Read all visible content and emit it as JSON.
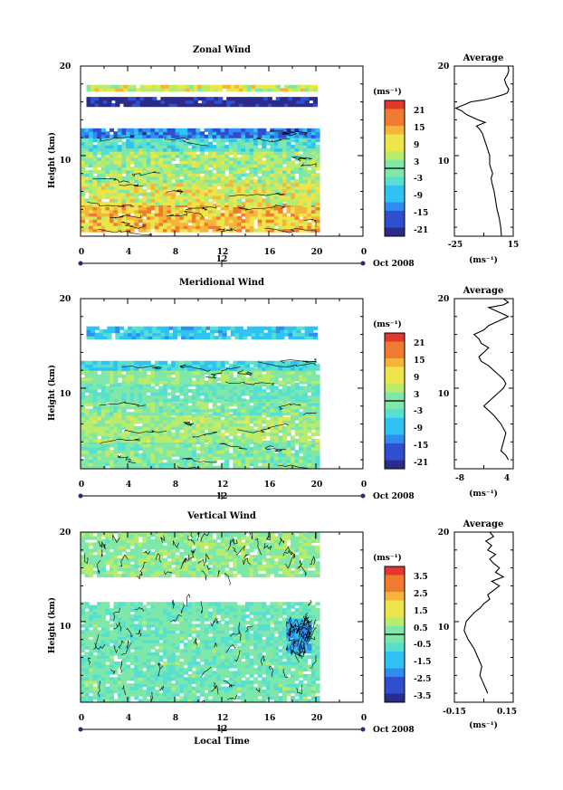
{
  "panels": [
    {
      "title": "Zonal Wind",
      "ylabel": "Height (km)",
      "y_ticks": [
        "20",
        "10"
      ],
      "x_ticks": [
        "0",
        "4",
        "8",
        "12",
        "16",
        "20",
        "0"
      ],
      "date_label": "12",
      "month_label": "Oct 2008",
      "colorbar": {
        "unit": "(ms⁻¹)",
        "ticks": [
          "21",
          "15",
          "9",
          "3",
          "-3",
          "-9",
          "-15",
          "-21"
        ]
      },
      "avg": {
        "title": "Average",
        "y_ticks": [
          "20",
          "10"
        ],
        "x_ticks": [
          "-25",
          "15"
        ],
        "unit": "(ms⁻¹)"
      }
    },
    {
      "title": "Meridional Wind",
      "ylabel": "Height (km)",
      "y_ticks": [
        "20",
        "10"
      ],
      "x_ticks": [
        "0",
        "4",
        "8",
        "12",
        "16",
        "20",
        "0"
      ],
      "date_label": "12",
      "month_label": "Oct 2008",
      "colorbar": {
        "unit": "(ms⁻¹)",
        "ticks": [
          "21",
          "15",
          "9",
          "3",
          "-3",
          "-9",
          "-15",
          "-21"
        ]
      },
      "avg": {
        "title": "Average",
        "y_ticks": [
          "20",
          "10"
        ],
        "x_ticks": [
          "-8",
          "4"
        ],
        "unit": "(ms⁻¹)"
      }
    },
    {
      "title": "Vertical Wind",
      "ylabel": "Height (km)",
      "y_ticks": [
        "20",
        "10"
      ],
      "x_ticks": [
        "0",
        "4",
        "8",
        "12",
        "16",
        "20",
        "0"
      ],
      "date_label": "12",
      "month_label": "Oct 2008",
      "xlabel": "Local Time",
      "colorbar": {
        "unit": "(ms⁻¹)",
        "ticks": [
          "3.5",
          "2.5",
          "1.5",
          "0.5",
          "-0.5",
          "-1.5",
          "-2.5",
          "-3.5"
        ]
      },
      "avg": {
        "title": "Average",
        "y_ticks": [
          "20",
          "10"
        ],
        "x_ticks": [
          "-0.15",
          "0.15"
        ],
        "unit": "(ms⁻¹)"
      }
    }
  ],
  "chart_data": [
    {
      "type": "heatmap",
      "title": "Zonal Wind",
      "xlabel": "",
      "ylabel": "Height (km)",
      "xlim": [
        0,
        24
      ],
      "ylim": [
        1,
        20
      ],
      "colorbar_range": [
        -24,
        24
      ],
      "bands": [
        {
          "y0": 1.5,
          "y1": 4.5,
          "x0": 0,
          "x1": 20,
          "value": 12
        },
        {
          "y0": 4.5,
          "y1": 7,
          "x0": 0,
          "x1": 20,
          "value": 7
        },
        {
          "y0": 7,
          "y1": 10.5,
          "x0": 0,
          "x1": 20,
          "value": 3
        },
        {
          "y0": 10.5,
          "y1": 12,
          "x0": 0,
          "x1": 20,
          "value": -4
        },
        {
          "y0": 12,
          "y1": 13,
          "x0": 0,
          "x1": 20,
          "value": -14
        },
        {
          "y0": 15.5,
          "y1": 16.5,
          "x0": 0.5,
          "x1": 20,
          "value": -22
        },
        {
          "y0": 17.2,
          "y1": 17.6,
          "x0": 0.5,
          "x1": 20,
          "value": 6
        }
      ]
    },
    {
      "type": "line",
      "title": "Average",
      "series_of": "Zonal Wind",
      "xlabel": "(ms⁻¹)",
      "ylabel": "",
      "xlim": [
        -25,
        15
      ],
      "ylim": [
        1,
        20
      ],
      "x": [
        7,
        6.5,
        5.5,
        4,
        3,
        2,
        0.5,
        0,
        1,
        0,
        -1,
        -1,
        -2,
        -3,
        -4,
        -5,
        -6,
        -8,
        -10,
        -4,
        -9,
        -13,
        -17,
        -20,
        -24,
        -18,
        -14,
        -6,
        2,
        8,
        11,
        12,
        11,
        10,
        9,
        11,
        12,
        11.5
      ],
      "y": [
        1,
        2,
        3,
        4,
        5,
        6,
        7,
        7.5,
        8,
        8.5,
        9,
        10,
        10.5,
        11,
        11.5,
        12,
        12.5,
        13,
        13.3,
        13.7,
        14,
        14.3,
        14.6,
        15,
        15.3,
        15.7,
        16,
        16.2,
        16.5,
        16.8,
        17,
        17.4,
        17.7,
        18,
        18.5,
        19,
        19.5,
        20
      ]
    },
    {
      "type": "heatmap",
      "title": "Meridional Wind",
      "xlabel": "",
      "ylabel": "Height (km)",
      "xlim": [
        0,
        24
      ],
      "ylim": [
        1,
        20
      ],
      "colorbar_range": [
        -24,
        24
      ],
      "bands": [
        {
          "y0": 1,
          "y1": 4,
          "x0": 0,
          "x1": 20,
          "value": 0
        },
        {
          "y0": 4,
          "y1": 7,
          "x0": 0,
          "x1": 20,
          "value": 3
        },
        {
          "y0": 7,
          "y1": 8.5,
          "x0": 0,
          "x1": 20,
          "value": 0
        },
        {
          "y0": 8.5,
          "y1": 10.5,
          "x0": 0,
          "x1": 20,
          "value": -2
        },
        {
          "y0": 10.5,
          "y1": 12,
          "x0": 0,
          "x1": 20,
          "value": 2
        },
        {
          "y0": 12,
          "y1": 13,
          "x0": 0,
          "x1": 20,
          "value": -6
        },
        {
          "y0": 15.5,
          "y1": 16.8,
          "x0": 0.5,
          "x1": 20,
          "value": -8
        }
      ]
    },
    {
      "type": "line",
      "title": "Average",
      "series_of": "Meridional Wind",
      "xlabel": "(ms⁻¹)",
      "ylabel": "",
      "xlim": [
        -8,
        4
      ],
      "ylim": [
        1,
        20
      ],
      "x": [
        3,
        2.5,
        1.5,
        2,
        2.5,
        1.5,
        0,
        -1,
        -2,
        -1,
        0,
        1,
        2,
        2.5,
        2,
        1,
        0,
        -1,
        -2.5,
        -3,
        -2,
        -1,
        -2.5,
        -3,
        -4,
        -2,
        -1,
        1,
        3,
        1,
        -1,
        2,
        3,
        2
      ],
      "y": [
        2,
        2.5,
        3,
        4,
        5,
        6,
        7,
        7.5,
        8,
        8.5,
        9,
        9.5,
        10,
        10.5,
        11,
        11.5,
        12,
        12.5,
        13,
        13.5,
        14,
        14.5,
        15,
        15.5,
        16,
        16.5,
        17,
        17.5,
        18,
        18.5,
        19,
        19.3,
        19.6,
        20
      ]
    },
    {
      "type": "heatmap",
      "title": "Vertical Wind",
      "xlabel": "Local Time",
      "ylabel": "Height (km)",
      "xlim": [
        0,
        24
      ],
      "ylim": [
        1,
        20
      ],
      "colorbar_range": [
        -4,
        4
      ],
      "bands": [
        {
          "y0": 1,
          "y1": 12,
          "x0": 0,
          "x1": 20,
          "value": -0.2
        },
        {
          "y0": 15,
          "y1": 20,
          "x0": 0,
          "x1": 20,
          "value": 0.2
        },
        {
          "y0": 6.5,
          "y1": 10,
          "x0": 17.5,
          "x1": 19.5,
          "value": -1.8
        }
      ]
    },
    {
      "type": "line",
      "title": "Average",
      "series_of": "Vertical Wind",
      "xlabel": "(ms⁻¹)",
      "ylabel": "",
      "xlim": [
        -0.15,
        0.15
      ],
      "ylim": [
        1,
        20
      ],
      "x": [
        0.02,
        0.0,
        -0.02,
        -0.01,
        -0.03,
        -0.05,
        -0.08,
        -0.1,
        -0.09,
        -0.07,
        -0.05,
        -0.02,
        0.0,
        0.03,
        0.02,
        0.05,
        0.08,
        0.04,
        0.1,
        0.06,
        0.08,
        0.05,
        0.03,
        0.06,
        0.02,
        0.04,
        0.01,
        0.05,
        0.03
      ],
      "y": [
        2,
        3,
        4,
        5,
        6,
        7,
        8,
        9,
        10,
        10.5,
        11,
        11.5,
        12,
        12.5,
        13,
        13.5,
        14,
        14.5,
        15,
        15.5,
        16,
        16.5,
        17,
        17.5,
        18,
        18.5,
        19,
        19.5,
        20
      ]
    }
  ]
}
